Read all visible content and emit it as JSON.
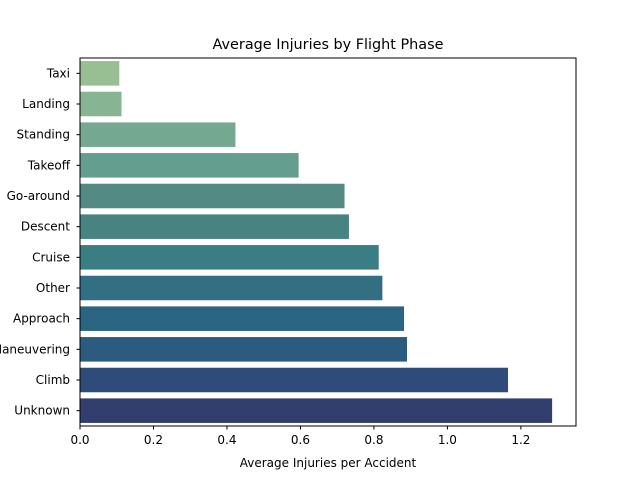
{
  "chart_data": {
    "type": "bar",
    "orientation": "horizontal",
    "title": "Average Injuries by Flight Phase",
    "xlabel": "Average Injuries per Accident",
    "ylabel": "",
    "categories": [
      "Taxi",
      "Landing",
      "Standing",
      "Takeoff",
      "Go-around",
      "Descent",
      "Cruise",
      "Other",
      "Approach",
      "Maneuvering",
      "Climb",
      "Unknown"
    ],
    "values": [
      0.107,
      0.113,
      0.423,
      0.595,
      0.72,
      0.732,
      0.813,
      0.823,
      0.882,
      0.89,
      1.165,
      1.285
    ],
    "colors": [
      "#97bf93",
      "#87b493",
      "#74a891",
      "#649e8e",
      "#538b84",
      "#478380",
      "#3a7d82",
      "#326f83",
      "#2a6581",
      "#2b5c80",
      "#2f4b79",
      "#323f6e"
    ],
    "xlim": [
      0,
      1.35
    ],
    "xticks": [
      "0.0",
      "0.2",
      "0.4",
      "0.6",
      "0.8",
      "1.0",
      "1.2"
    ],
    "grid": false,
    "legend": "none"
  }
}
